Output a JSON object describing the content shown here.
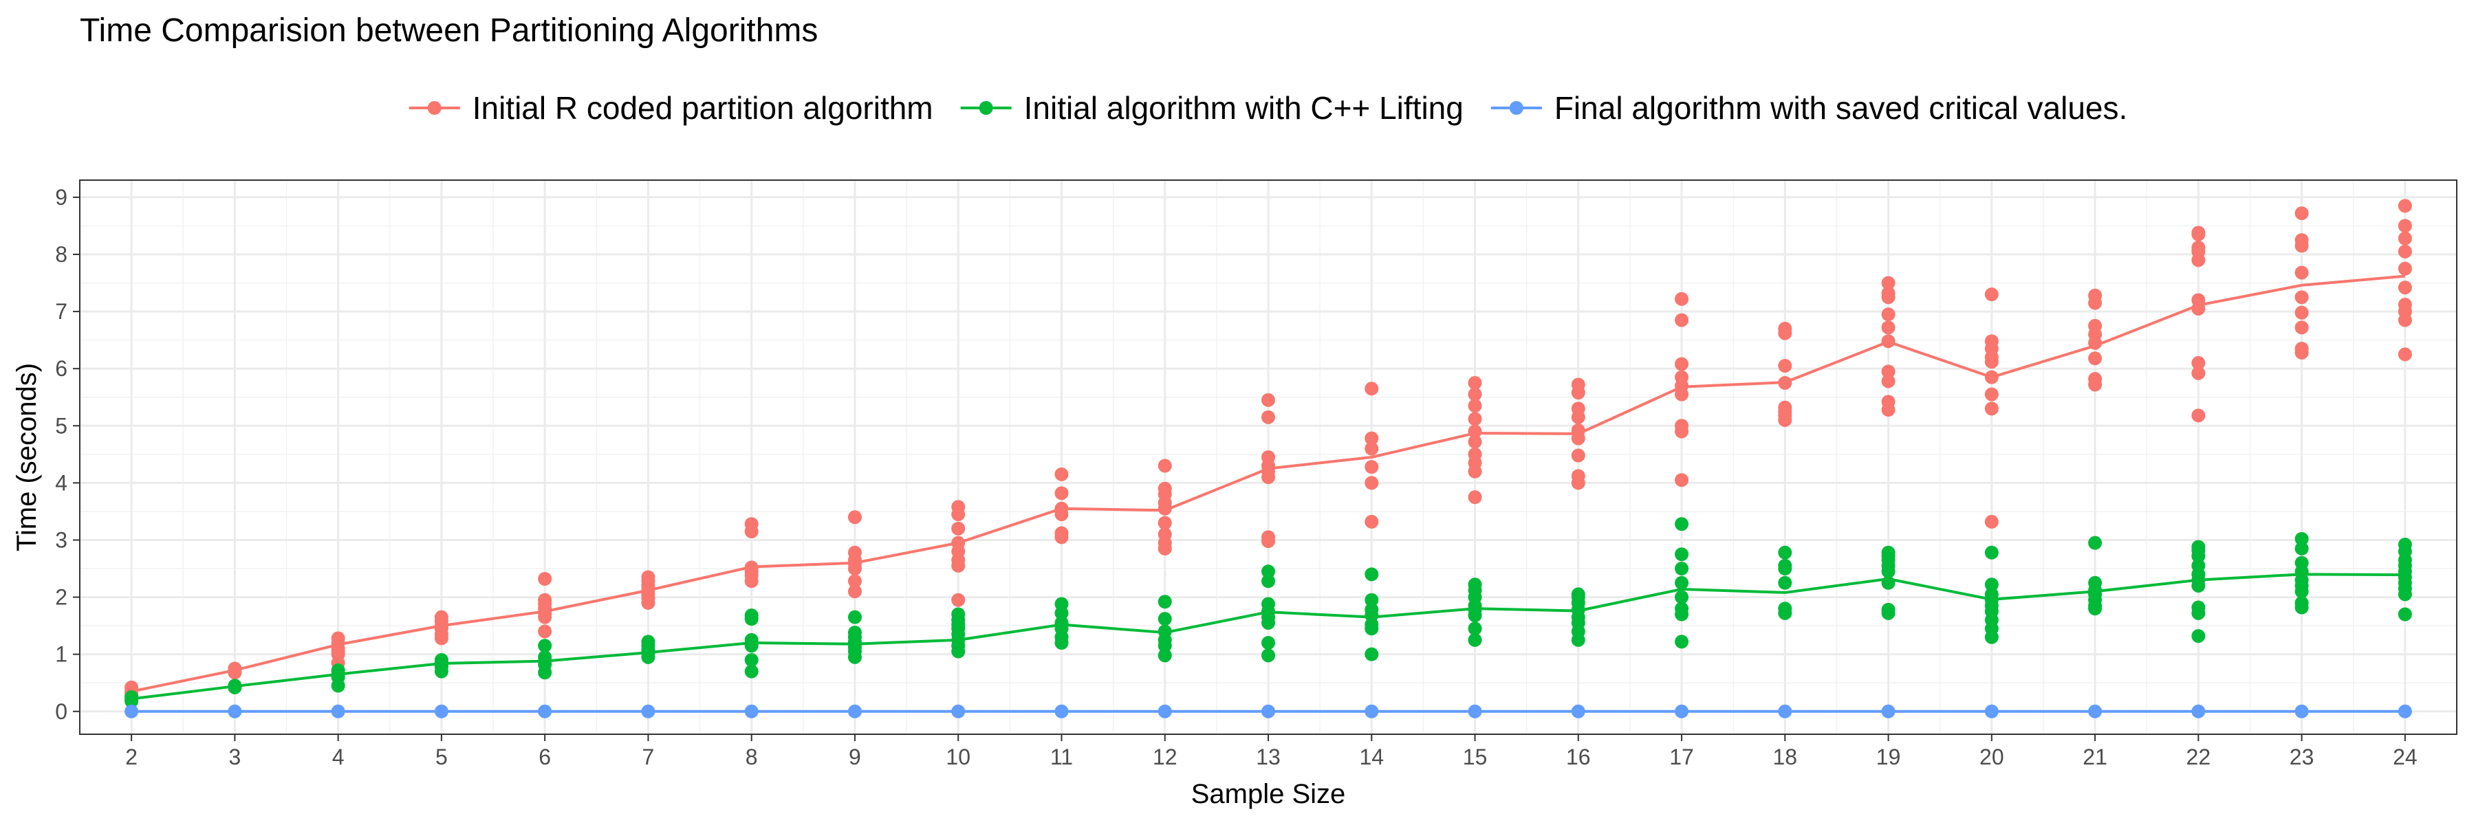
{
  "chart_data": {
    "type": "scatter",
    "title": "Time Comparision between Partitioning Algorithms",
    "xlabel": "Sample Size",
    "ylabel": "Time (seconds)",
    "xlim": [
      1.5,
      24.5
    ],
    "ylim": [
      -0.4,
      9.3
    ],
    "x_ticks": [
      2,
      3,
      4,
      5,
      6,
      7,
      8,
      9,
      10,
      11,
      12,
      13,
      14,
      15,
      16,
      17,
      18,
      19,
      20,
      21,
      22,
      23,
      24
    ],
    "y_ticks": [
      0,
      1,
      2,
      3,
      4,
      5,
      6,
      7,
      8,
      9
    ],
    "grid": true,
    "legend_position": "top",
    "x": [
      2,
      3,
      4,
      5,
      6,
      7,
      8,
      9,
      10,
      11,
      12,
      13,
      14,
      15,
      16,
      17,
      18,
      19,
      20,
      21,
      22,
      23,
      24
    ],
    "series": [
      {
        "name": "Initial R coded partition algorithm",
        "color": "#F8766D",
        "mean_line": [
          0.35,
          0.72,
          1.17,
          1.5,
          1.75,
          2.12,
          2.53,
          2.6,
          2.95,
          3.55,
          3.52,
          4.25,
          4.45,
          4.87,
          4.86,
          5.68,
          5.76,
          6.47,
          5.85,
          6.4,
          7.11,
          7.46,
          7.62
        ],
        "points": [
          [
            0.3,
            0.35,
            0.42
          ],
          [
            0.68,
            0.72,
            0.75
          ],
          [
            0.85,
            1.0,
            1.05,
            1.1,
            1.2,
            1.28
          ],
          [
            1.28,
            1.35,
            1.45,
            1.5,
            1.58,
            1.65
          ],
          [
            1.4,
            1.65,
            1.72,
            1.8,
            1.88,
            1.95,
            2.32
          ],
          [
            1.9,
            1.98,
            2.05,
            2.12,
            2.2,
            2.28,
            2.35
          ],
          [
            2.28,
            2.38,
            2.45,
            2.52,
            3.15,
            3.28
          ],
          [
            2.1,
            2.28,
            2.5,
            2.58,
            2.65,
            2.78,
            3.4
          ],
          [
            1.95,
            2.55,
            2.65,
            2.8,
            2.95,
            3.2,
            3.45,
            3.58
          ],
          [
            3.05,
            3.12,
            3.45,
            3.55,
            3.82,
            4.15
          ],
          [
            2.85,
            2.95,
            3.1,
            3.3,
            3.55,
            3.65,
            3.8,
            3.9,
            4.3
          ],
          [
            2.98,
            3.05,
            4.1,
            4.2,
            4.3,
            4.45,
            5.15,
            5.45
          ],
          [
            3.32,
            4.0,
            4.28,
            4.6,
            4.78,
            5.65
          ],
          [
            3.75,
            4.2,
            4.35,
            4.5,
            4.72,
            4.9,
            5.12,
            5.35,
            5.55,
            5.75
          ],
          [
            4.0,
            4.12,
            4.48,
            4.78,
            4.92,
            5.15,
            5.3,
            5.58,
            5.72
          ],
          [
            4.05,
            4.9,
            5.0,
            5.55,
            5.7,
            5.85,
            6.08,
            6.85,
            7.22
          ],
          [
            5.1,
            5.18,
            5.25,
            5.32,
            5.75,
            6.05,
            6.62,
            6.7
          ],
          [
            5.28,
            5.42,
            5.78,
            5.95,
            6.48,
            6.72,
            6.95,
            7.25,
            7.32,
            7.5
          ],
          [
            3.32,
            5.3,
            5.55,
            5.85,
            6.12,
            6.2,
            6.35,
            6.48,
            7.3
          ],
          [
            5.72,
            5.82,
            6.18,
            6.45,
            6.6,
            6.75,
            7.15,
            7.28
          ],
          [
            5.18,
            5.92,
            6.1,
            7.05,
            7.2,
            7.9,
            8.05,
            8.12,
            8.35,
            8.38
          ],
          [
            6.28,
            6.35,
            6.72,
            6.98,
            7.25,
            7.68,
            8.15,
            8.25,
            8.72
          ],
          [
            6.25,
            6.85,
            7.0,
            7.12,
            7.42,
            7.75,
            8.05,
            8.28,
            8.5,
            8.85
          ]
        ]
      },
      {
        "name": "Initial algorithm with C++ Lifting",
        "color": "#00BA38",
        "mean_line": [
          0.22,
          0.44,
          0.65,
          0.84,
          0.88,
          1.03,
          1.2,
          1.18,
          1.25,
          1.52,
          1.38,
          1.74,
          1.65,
          1.8,
          1.76,
          2.14,
          2.08,
          2.32,
          1.96,
          2.1,
          2.3,
          2.4,
          2.39
        ],
        "points": [
          [
            0.18,
            0.22,
            0.25
          ],
          [
            0.42,
            0.45
          ],
          [
            0.45,
            0.6,
            0.65,
            0.72
          ],
          [
            0.7,
            0.78,
            0.82,
            0.85,
            0.9
          ],
          [
            0.68,
            0.82,
            0.88,
            0.95,
            1.15
          ],
          [
            0.95,
            1.02,
            1.08,
            1.15,
            1.22
          ],
          [
            0.7,
            0.9,
            1.15,
            1.2,
            1.25,
            1.62,
            1.68
          ],
          [
            0.95,
            1.05,
            1.12,
            1.18,
            1.22,
            1.3,
            1.38,
            1.65
          ],
          [
            1.05,
            1.15,
            1.25,
            1.35,
            1.45,
            1.52,
            1.6,
            1.7
          ],
          [
            1.2,
            1.3,
            1.45,
            1.55,
            1.72,
            1.88
          ],
          [
            0.98,
            1.15,
            1.25,
            1.4,
            1.62,
            1.92
          ],
          [
            0.98,
            1.2,
            1.55,
            1.65,
            1.75,
            1.88,
            2.28,
            2.45
          ],
          [
            1.0,
            1.45,
            1.52,
            1.68,
            1.78,
            1.95,
            2.4
          ],
          [
            1.25,
            1.45,
            1.68,
            1.78,
            1.85,
            2.0,
            2.12,
            2.22
          ],
          [
            1.25,
            1.4,
            1.55,
            1.65,
            1.78,
            1.9,
            2.0,
            2.05
          ],
          [
            1.22,
            1.7,
            1.8,
            2.0,
            2.25,
            2.5,
            2.75,
            3.28
          ],
          [
            1.72,
            1.8,
            2.25,
            2.5,
            2.55,
            2.78
          ],
          [
            1.72,
            1.78,
            2.25,
            2.45,
            2.55,
            2.65,
            2.72,
            2.78
          ],
          [
            1.3,
            1.45,
            1.6,
            1.75,
            1.85,
            1.95,
            2.05,
            2.22,
            2.78
          ],
          [
            1.8,
            1.85,
            1.95,
            2.05,
            2.12,
            2.25,
            2.95
          ],
          [
            1.32,
            1.72,
            1.82,
            2.2,
            2.3,
            2.4,
            2.55,
            2.72,
            2.82,
            2.88
          ],
          [
            1.82,
            1.9,
            2.1,
            2.2,
            2.3,
            2.45,
            2.6,
            2.85,
            3.02
          ],
          [
            1.7,
            2.05,
            2.15,
            2.25,
            2.35,
            2.45,
            2.55,
            2.65,
            2.8,
            2.92
          ]
        ]
      },
      {
        "name": "Final algorithm with saved critical values.",
        "color": "#619CFF",
        "mean_line": [
          0,
          0,
          0,
          0,
          0,
          0,
          0,
          0,
          0,
          0,
          0,
          0,
          0,
          0,
          0,
          0,
          0,
          0,
          0,
          0,
          0,
          0,
          0
        ],
        "points": [
          [
            0
          ],
          [
            0
          ],
          [
            0
          ],
          [
            0
          ],
          [
            0
          ],
          [
            0
          ],
          [
            0
          ],
          [
            0
          ],
          [
            0
          ],
          [
            0
          ],
          [
            0
          ],
          [
            0
          ],
          [
            0
          ],
          [
            0
          ],
          [
            0
          ],
          [
            0
          ],
          [
            0
          ],
          [
            0
          ],
          [
            0
          ],
          [
            0
          ],
          [
            0
          ],
          [
            0
          ],
          [
            0
          ]
        ]
      }
    ]
  }
}
